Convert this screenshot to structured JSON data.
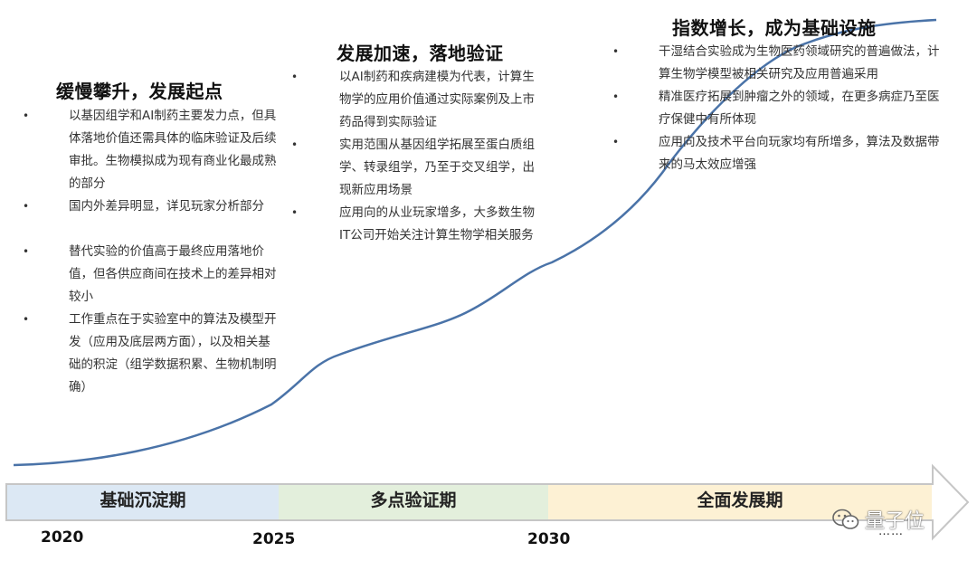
{
  "colors": {
    "curve": "#4a73a8",
    "phase1_fill": "#dce8f4",
    "phase2_fill": "#e3efdc",
    "phase3_fill": "#fdf1d4",
    "arrow_border": "#c6c6c6"
  },
  "phases": [
    {
      "label": "基础沉淀期"
    },
    {
      "label": "多点验证期"
    },
    {
      "label": "全面发展期"
    }
  ],
  "years": [
    "2020",
    "2025",
    "2030"
  ],
  "continuation": "……",
  "stage1": {
    "title": "缓慢攀升，发展起点",
    "bullets": [
      "以基因组学和AI制药主要发力点，但具体落地价值还需具体的临床验证及后续审批。生物模拟成为现有商业化最成熟的部分",
      "国内外差异明显，详见玩家分析部分",
      "替代实验的价值高于最终应用落地价值，但各供应商间在技术上的差异相对较小",
      "工作重点在于实验室中的算法及模型开发（应用及底层两方面），以及相关基础的积淀（组学数据积累、生物机制明确）"
    ]
  },
  "stage2": {
    "title": "发展加速，落地验证",
    "bullets": [
      "以AI制药和疾病建模为代表，计算生物学的应用价值通过实际案例及上市药品得到实际验证",
      "实用范围从基因组学拓展至蛋白质组学、转录组学，乃至于交叉组学，出现新应用场景",
      "应用向的从业玩家增多，大多数生物IT公司开始关注计算生物学相关服务"
    ]
  },
  "stage3": {
    "title": "指数增长，成为基础设施",
    "bullets": [
      "干湿结合实验成为生物医药领域研究的普遍做法，计算生物学模型被相关研究及应用普遍采用",
      "精准医疗拓展到肿瘤之外的领域，在更多病症乃至医疗保健中有所体现",
      "应用向及技术平台向玩家均有所增多，算法及数据带来的马太效应增强"
    ]
  },
  "watermark": "量子位"
}
